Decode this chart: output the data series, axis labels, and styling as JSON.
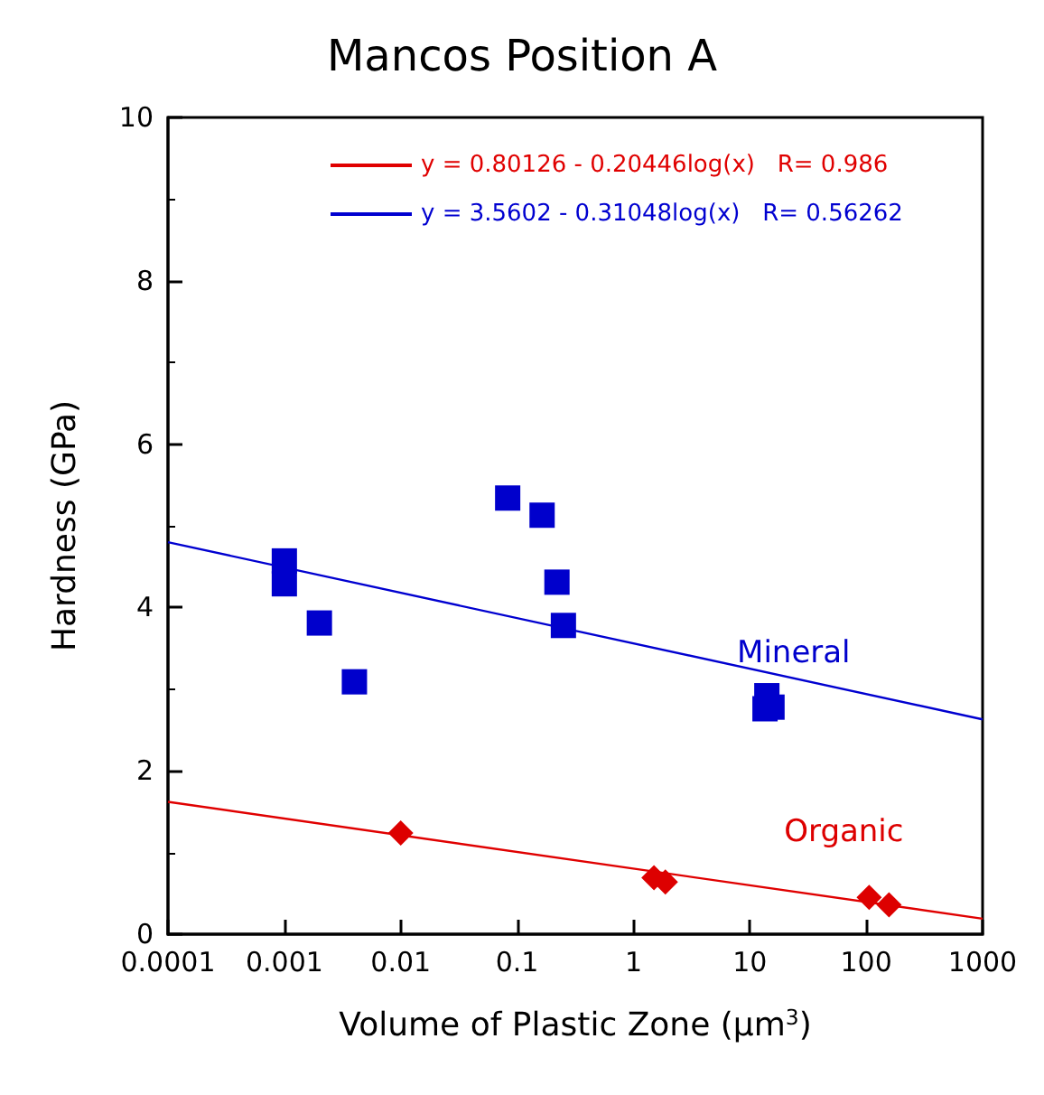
{
  "chart_data": {
    "type": "scatter",
    "title": "Mancos Position A",
    "xlabel": "Volume of Plastic Zone (μm$^{3}$)",
    "ylabel": "Hardness (GPa)",
    "log": "x",
    "xlim": [
      0.0001,
      1000
    ],
    "xticks": [
      0.0001,
      0.001,
      0.01,
      0.1,
      1,
      10,
      100,
      1000
    ],
    "ylim": [
      0,
      10
    ],
    "yticks": [
      0,
      2,
      4,
      6,
      8,
      10
    ],
    "grid": false,
    "legend": "top",
    "series": [
      {
        "name": "y = 0.80126 - 0.20446log(x)   R= 0.986",
        "type": "line",
        "marker": "none",
        "color": "#e00000",
        "x": [
          0.0001,
          1000
        ],
        "values": [
          1.62,
          0.19
        ]
      },
      {
        "name": "y = 3.5602 - 0.31048log(x)   R= 0.56262",
        "type": "line",
        "marker": "none",
        "color": "#0000d0",
        "x": [
          0.0001,
          1000
        ],
        "values": [
          4.8,
          2.63
        ]
      },
      {
        "name": "Mineral",
        "marker": "square",
        "color": "#0000cc",
        "x": [
          0.001,
          0.001,
          0.002,
          0.004,
          0.083,
          0.164,
          0.22,
          0.25,
          14,
          13.5,
          15.5
        ],
        "values": [
          4.57,
          4.29,
          3.81,
          3.09,
          5.34,
          5.13,
          4.31,
          3.78,
          2.92,
          2.76,
          2.78
        ]
      },
      {
        "name": "Organic",
        "marker": "diamond",
        "color": "#dd0000",
        "x": [
          0.01,
          1.5,
          1.88,
          106,
          157
        ],
        "values": [
          1.24,
          0.69,
          0.64,
          0.45,
          0.36
        ]
      }
    ]
  }
}
